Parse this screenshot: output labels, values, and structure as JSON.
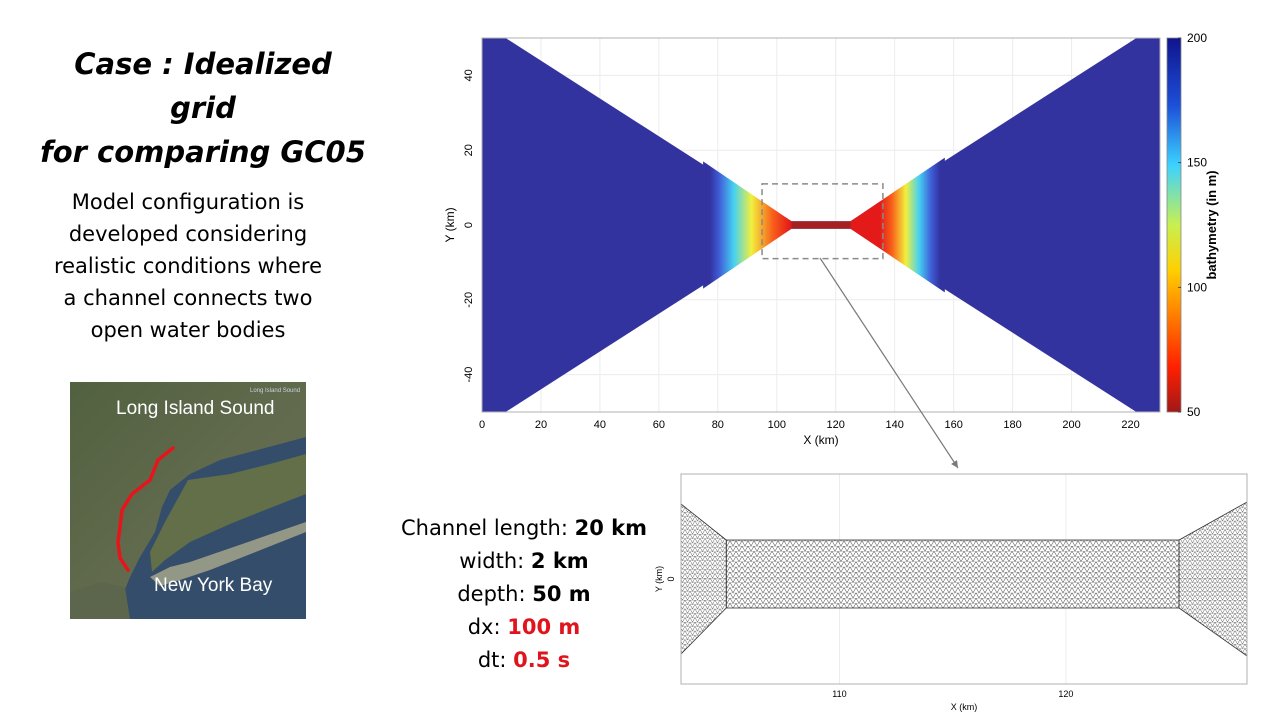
{
  "title": {
    "line1": "Case : Idealized grid",
    "line2": "for comparing GC05"
  },
  "description": {
    "line1": "Model configuration is",
    "line2": "developed considering",
    "line3": "realistic conditions where",
    "line4": "a channel connects two",
    "line5": "open water bodies"
  },
  "map": {
    "label_top": "Long Island Sound",
    "label_bottom": "New York Bay",
    "small_label": "Long Island Sound"
  },
  "parameters": [
    {
      "label": "Channel length: ",
      "value": "20 km",
      "color": "#000000"
    },
    {
      "label": "width: ",
      "value": "2 km",
      "color": "#000000"
    },
    {
      "label": "depth: ",
      "value": "50 m",
      "color": "#000000"
    },
    {
      "label": "dx: ",
      "value": "100 m",
      "color": "#e0141c"
    },
    {
      "label": "dt: ",
      "value": "0.5 s",
      "color": "#e0141c"
    }
  ],
  "chart_data": [
    {
      "type": "heatmap",
      "xlabel": "X (km)",
      "ylabel": "Y (km)",
      "xlim": [
        0,
        230
      ],
      "ylim": [
        -50,
        50
      ],
      "x_ticks": [
        0,
        20,
        40,
        60,
        80,
        100,
        120,
        140,
        160,
        180,
        200,
        220
      ],
      "y_ticks": [
        -40,
        -20,
        0,
        20,
        40
      ],
      "grid": true,
      "colorbar": {
        "label": "bathymetry (in m)",
        "ticks": [
          50,
          100,
          150,
          200
        ],
        "range": [
          50,
          200
        ],
        "colors": [
          "#a01818",
          "#ff2000",
          "#ffe600",
          "#3cd2ff",
          "#1c4fd8",
          "#10148c"
        ]
      },
      "domain_outline": {
        "x": [
          0,
          8,
          105,
          125,
          222,
          230,
          230,
          222,
          125,
          105,
          8,
          0
        ],
        "y": [
          50,
          50,
          1,
          1,
          50,
          50,
          -50,
          -50,
          -1,
          -1,
          -50,
          -50
        ]
      },
      "channel": {
        "x_start": 105,
        "x_end": 125,
        "width_km": 2,
        "depth_m": 50
      },
      "deep_water_depth_m": 200,
      "zoom_box": {
        "x": [
          95,
          136
        ],
        "y": [
          -9,
          11
        ]
      }
    },
    {
      "type": "mesh",
      "xlabel": "X (km)",
      "ylabel": "Y (km)",
      "xlim": [
        103,
        128
      ],
      "x_ticks": [
        110,
        120
      ],
      "y_ticks": [
        0
      ],
      "grid": true,
      "channel": {
        "x_start": 105,
        "x_end": 125
      }
    }
  ]
}
